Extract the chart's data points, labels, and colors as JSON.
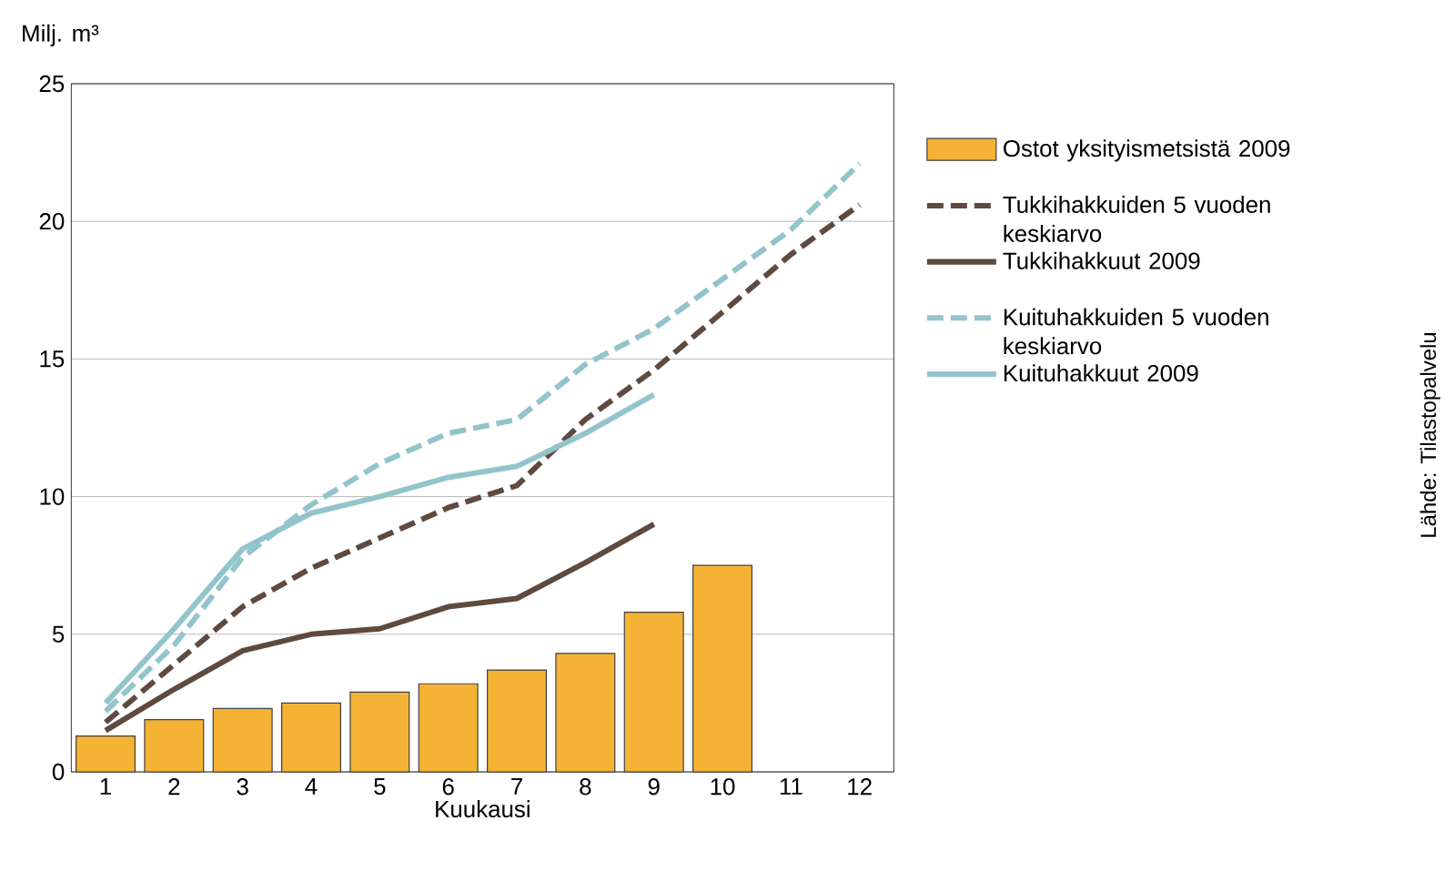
{
  "chart_data": {
    "type": "bar",
    "ylabel": "Milj. m³",
    "xlabel": "Kuukausi",
    "categories": [
      "1",
      "2",
      "3",
      "4",
      "5",
      "6",
      "7",
      "8",
      "9",
      "10",
      "11",
      "12"
    ],
    "ylim": [
      0,
      25
    ],
    "yticks": [
      0,
      5,
      10,
      15,
      20,
      25
    ],
    "grid": "y",
    "legend": "right",
    "annotations": [
      "Lähde: Tilastopalvelu"
    ],
    "series": [
      {
        "name": "Ostot yksityismetsistä 2009",
        "color": "#f5b335",
        "values": [
          1.3,
          1.9,
          2.3,
          2.5,
          2.9,
          3.2,
          3.7,
          4.3,
          5.8,
          7.5,
          null,
          null
        ]
      },
      {
        "name": "Tukkihakkuiden 5 vuoden keskiarvo",
        "type": "line",
        "line_style": "dashed",
        "color": "#5e4a3e",
        "values": [
          1.8,
          3.9,
          6.0,
          7.4,
          8.5,
          9.6,
          10.4,
          12.8,
          14.6,
          16.7,
          18.8,
          20.6
        ]
      },
      {
        "name": "Tukkihakkuut 2009",
        "type": "line",
        "line_style": "solid",
        "color": "#5e4a3e",
        "values": [
          1.5,
          3.0,
          4.4,
          5.0,
          5.2,
          6.0,
          6.3,
          7.6,
          9.0,
          null,
          null,
          null
        ]
      },
      {
        "name": "Kuituhakkuiden 5 vuoden keskiarvo",
        "type": "line",
        "line_style": "dashed",
        "color": "#93c4cc",
        "values": [
          2.2,
          4.6,
          7.8,
          9.7,
          11.2,
          12.3,
          12.8,
          14.8,
          16.1,
          17.9,
          19.7,
          22.1
        ]
      },
      {
        "name": "Kuituhakkuut 2009",
        "type": "line",
        "line_style": "solid",
        "color": "#93c4cc",
        "values": [
          2.5,
          5.2,
          8.1,
          9.4,
          10.0,
          10.7,
          11.1,
          12.3,
          13.7,
          null,
          null,
          null
        ]
      }
    ]
  }
}
